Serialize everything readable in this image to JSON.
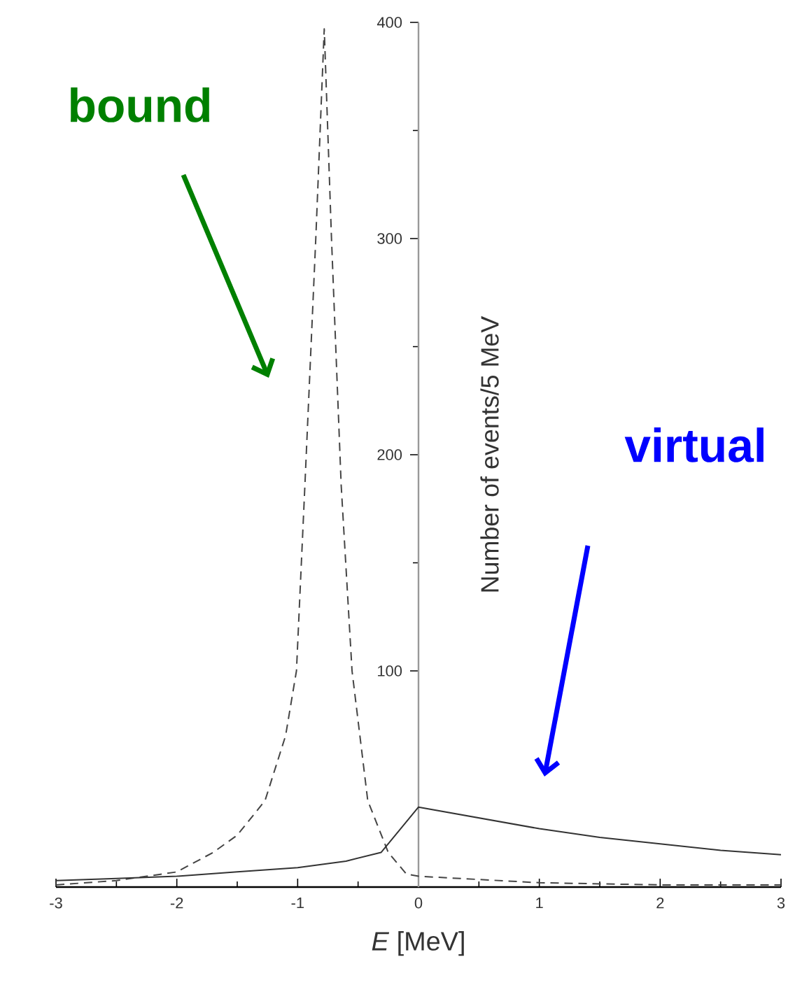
{
  "chart_data": {
    "type": "line",
    "xlabel": "*E* [MeV]",
    "ylabel": "Number of events/5 MeV",
    "xlim": [
      -3,
      3
    ],
    "ylim": [
      0,
      400
    ],
    "xticks": [
      -3,
      -2,
      -1,
      0,
      1,
      2,
      3
    ],
    "yticks": [
      100,
      200,
      300,
      400
    ],
    "series": [
      {
        "color": "#444444",
        "line_style": "dashed",
        "x": [
          -3,
          -2.5,
          -2,
          -1.7,
          -1.5,
          -1.27,
          -1.1,
          -1.01,
          -0.94,
          -0.85,
          -0.78,
          -0.72,
          -0.64,
          -0.55,
          -0.42,
          -0.25,
          -0.1,
          0,
          1,
          2,
          3
        ],
        "values": [
          1,
          3,
          7,
          16,
          24,
          40,
          70,
          100,
          186,
          300,
          397,
          300,
          186,
          100,
          40,
          16,
          6,
          5,
          2,
          1,
          1
        ]
      },
      {
        "color": "#333333",
        "line_style": "solid",
        "x": [
          -3,
          -2.5,
          -2,
          -1.5,
          -1,
          -0.6,
          -0.31,
          0,
          0.5,
          1,
          1.5,
          2,
          2.5,
          3
        ],
        "values": [
          3,
          4,
          5,
          7,
          9,
          12,
          16,
          37,
          32,
          27,
          23,
          20,
          17,
          15
        ]
      }
    ],
    "annotations": [
      "bound",
      "virtual"
    ]
  }
}
